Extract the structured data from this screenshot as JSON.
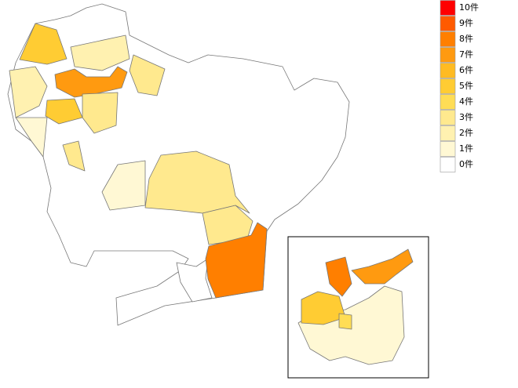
{
  "legend": [
    {
      "label": "10件",
      "color": "#ff0000"
    },
    {
      "label": "9件",
      "color": "#ff5a00"
    },
    {
      "label": "8件",
      "color": "#ff7f00"
    },
    {
      "label": "7件",
      "color": "#ff9a10"
    },
    {
      "label": "6件",
      "color": "#ffbb22"
    },
    {
      "label": "5件",
      "color": "#ffcc33"
    },
    {
      "label": "4件",
      "color": "#ffdd55"
    },
    {
      "label": "3件",
      "color": "#ffe98e"
    },
    {
      "label": "2件",
      "color": "#fff1b0"
    },
    {
      "label": "1件",
      "color": "#fff8d4"
    },
    {
      "label": "0件",
      "color": "#ffffff"
    }
  ]
}
